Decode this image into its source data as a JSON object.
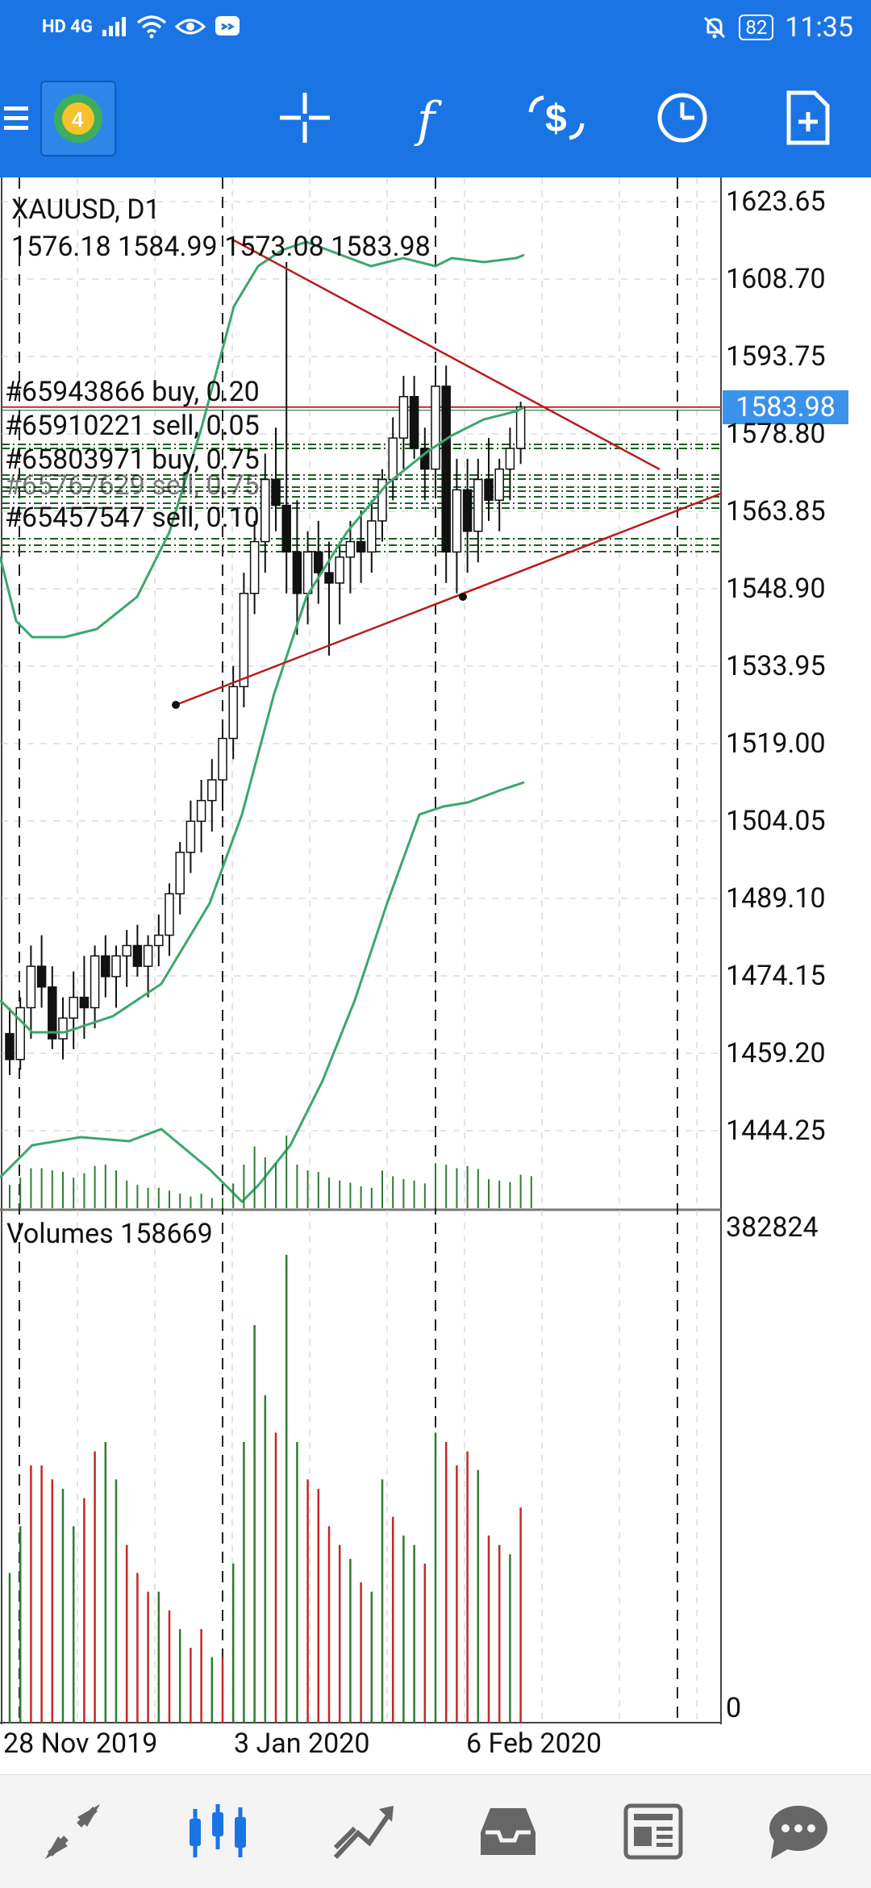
{
  "status_bar": {
    "signal_text": "HD 4G",
    "battery": "82",
    "time": "11:35"
  },
  "toolbar": {
    "icons": [
      "menu-icon",
      "metatrader-4-logo",
      "crosshair-icon",
      "indicators-icon",
      "trade-icon",
      "timeframe-icon",
      "new-chart-icon"
    ]
  },
  "chart": {
    "symbol_timeframe": "XAUUSD, D1",
    "ohlc": "1576.18 1584.99 1573.08 1583.98",
    "current_price": "1583.98",
    "orders": [
      "#65943866 buy, 0.20",
      "#65910221 sell, 0.05",
      "#65803971 buy, 0.75",
      "#65767629 sell, 0.75",
      "#65457547 sell, 0.10"
    ],
    "volumes_label": "Volumes 158669",
    "volume_max_tick": "382824",
    "volume_min_tick": "0",
    "price_ticks": [
      "1623.65",
      "1608.70",
      "1593.75",
      "1578.80",
      "1563.85",
      "1548.90",
      "1533.95",
      "1519.00",
      "1504.05",
      "1489.10",
      "1474.15",
      "1459.20",
      "1444.25"
    ],
    "date_ticks": [
      "28 Nov 2019",
      "3 Jan 2020",
      "6 Feb 2020"
    ],
    "colors": {
      "bull_volume": "#2e7d32",
      "bear_volume": "#c62828",
      "bollinger": "#3aa76d",
      "trendline": "#b71c1c",
      "current_price_bg": "#3b92ea",
      "order_line": "#1b5e20",
      "grid": "#c8c8c8"
    }
  },
  "bottom_nav": {
    "items": [
      "quotes-icon",
      "chart-icon",
      "trade-icon",
      "history-icon",
      "news-icon",
      "messages-icon"
    ],
    "active": "chart-icon"
  }
}
